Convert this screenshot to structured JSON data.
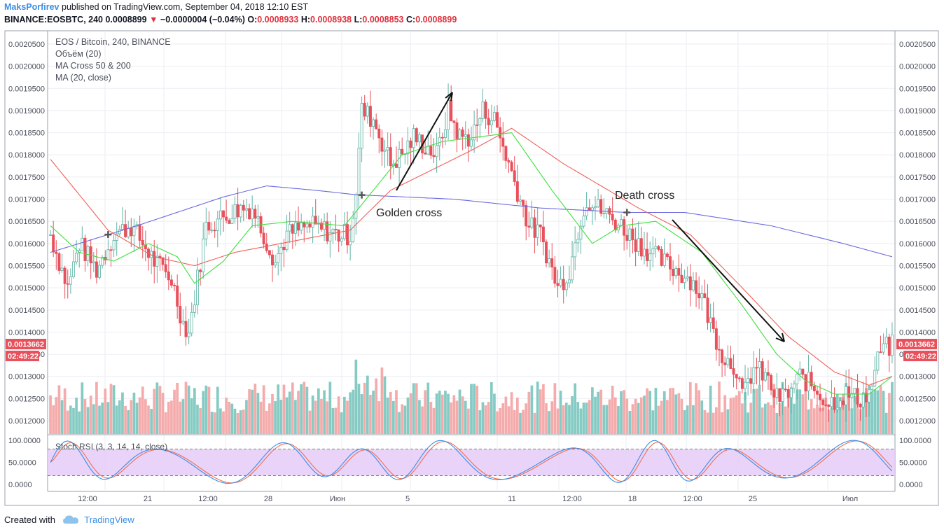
{
  "header": {
    "author": "MaksPorfirev",
    "published_text": "published on TradingView.com, September 04, 2018 12:10 EST",
    "symbol": "BINANCE:EOSBTC, 240",
    "last_price": "0.0008899",
    "change": "−0.0000004 (−0.04%)",
    "open_label": "O:",
    "open": "0.0008933",
    "high_label": "H:",
    "high": "0.0008938",
    "low_label": "L:",
    "low": "0.0008853",
    "close_label": "C:",
    "close": "0.0008899"
  },
  "legend": {
    "title": "EOS / Bitcoin, 240, BINANCE",
    "volume": "Объём (20)",
    "ma_cross": "MA Cross 50 & 200",
    "ma": "MA (20, close)"
  },
  "rsi_label": "Stoch RSI (3, 3, 14, 14, close)",
  "annotations": {
    "golden_cross": "Golden cross",
    "death_cross": "Death cross"
  },
  "price_badge": {
    "price": "0.0013662",
    "countdown": "02:49:22"
  },
  "footer": {
    "created_with": "Created with",
    "brand": "TradingView"
  },
  "colors": {
    "up": "#7ec8c0",
    "down": "#e8505b",
    "up_candle_fill": "#ffffff",
    "ma20": "#3ee03e",
    "ma50": "#f0605a",
    "ma200": "#6a6ae0",
    "rsi_k": "#3b8de8",
    "rsi_d": "#f07050",
    "rsi_band": "#e3c8f8",
    "badge": "#e8505b",
    "brand": "#3a8ee6"
  },
  "chart_data": {
    "type": "candlestick",
    "y_axis_ticks": [
      "0.0020500",
      "0.0020000",
      "0.0019500",
      "0.0019000",
      "0.0018500",
      "0.0018000",
      "0.0017500",
      "0.0017000",
      "0.0016500",
      "0.0016000",
      "0.0015500",
      "0.0015000",
      "0.0014500",
      "0.0014000",
      "0.0013500",
      "0.0013000",
      "0.0012500",
      "0.0012000"
    ],
    "y_range": [
      0.00117,
      0.00208
    ],
    "x_axis_ticks": [
      "12:00",
      "21",
      "12:00",
      "28",
      "Июн",
      "5",
      "11",
      "12:00",
      "18",
      "12:00",
      "25",
      "Июл"
    ],
    "rsi_axis_ticks": [
      "100.0000",
      "50.0000",
      "0.0000"
    ],
    "rsi_range": [
      0,
      100
    ],
    "rsi_bands": [
      20,
      80
    ],
    "price_anchors": [
      [
        0,
        0.00162
      ],
      [
        6,
        0.0015
      ],
      [
        10,
        0.0016
      ],
      [
        16,
        0.00154
      ],
      [
        22,
        0.00162
      ],
      [
        28,
        0.00164
      ],
      [
        36,
        0.00156
      ],
      [
        42,
        0.00152
      ],
      [
        46,
        0.00142
      ],
      [
        48,
        0.0014
      ],
      [
        50,
        0.00148
      ],
      [
        54,
        0.00164
      ],
      [
        60,
        0.00166
      ],
      [
        66,
        0.00168
      ],
      [
        70,
        0.00168
      ],
      [
        74,
        0.00162
      ],
      [
        78,
        0.00156
      ],
      [
        82,
        0.00162
      ],
      [
        90,
        0.00164
      ],
      [
        100,
        0.00162
      ],
      [
        104,
        0.00162
      ],
      [
        106,
        0.00172
      ],
      [
        108,
        0.0019
      ],
      [
        112,
        0.00188
      ],
      [
        118,
        0.00178
      ],
      [
        122,
        0.0018
      ],
      [
        126,
        0.00184
      ],
      [
        130,
        0.00182
      ],
      [
        134,
        0.0018
      ],
      [
        138,
        0.0019
      ],
      [
        142,
        0.00184
      ],
      [
        146,
        0.00184
      ],
      [
        150,
        0.0019
      ],
      [
        154,
        0.00188
      ],
      [
        158,
        0.0018
      ],
      [
        162,
        0.00172
      ],
      [
        166,
        0.00164
      ],
      [
        170,
        0.00162
      ],
      [
        174,
        0.00154
      ],
      [
        176,
        0.0015
      ],
      [
        180,
        0.00154
      ],
      [
        184,
        0.00166
      ],
      [
        186,
        0.0017
      ],
      [
        190,
        0.00168
      ],
      [
        194,
        0.00166
      ],
      [
        198,
        0.00164
      ],
      [
        204,
        0.0016
      ],
      [
        212,
        0.00156
      ],
      [
        222,
        0.00152
      ],
      [
        226,
        0.00148
      ],
      [
        230,
        0.0014
      ],
      [
        234,
        0.00134
      ],
      [
        238,
        0.00132
      ],
      [
        240,
        0.00125
      ],
      [
        244,
        0.00132
      ],
      [
        248,
        0.0013
      ],
      [
        252,
        0.00125
      ],
      [
        256,
        0.00126
      ],
      [
        260,
        0.0013
      ],
      [
        264,
        0.00128
      ],
      [
        270,
        0.00124
      ],
      [
        276,
        0.00126
      ],
      [
        280,
        0.00125
      ],
      [
        284,
        0.00126
      ],
      [
        288,
        0.00136
      ],
      [
        292,
        0.00137
      ]
    ],
    "ma200_anchors": [
      [
        0,
        0.00158
      ],
      [
        30,
        0.00164
      ],
      [
        60,
        0.001705
      ],
      [
        75,
        0.00173
      ],
      [
        92,
        0.00172
      ],
      [
        106,
        0.00171
      ],
      [
        140,
        0.0017
      ],
      [
        170,
        0.00168
      ],
      [
        200,
        0.00167
      ],
      [
        220,
        0.00167
      ],
      [
        250,
        0.00164
      ],
      [
        275,
        0.0016
      ],
      [
        292,
        0.00157
      ]
    ],
    "ma50_anchors": [
      [
        0,
        0.00179
      ],
      [
        20,
        0.00163
      ],
      [
        36,
        0.00157
      ],
      [
        50,
        0.00155
      ],
      [
        64,
        0.00158
      ],
      [
        80,
        0.0016
      ],
      [
        104,
        0.00163
      ],
      [
        118,
        0.00172
      ],
      [
        146,
        0.00181
      ],
      [
        160,
        0.00186
      ],
      [
        178,
        0.00178
      ],
      [
        204,
        0.00168
      ],
      [
        222,
        0.00162
      ],
      [
        240,
        0.0015
      ],
      [
        256,
        0.00139
      ],
      [
        272,
        0.00131
      ],
      [
        284,
        0.00128
      ],
      [
        292,
        0.0013
      ]
    ],
    "ma20_anchors": [
      [
        0,
        0.00164
      ],
      [
        10,
        0.00158
      ],
      [
        22,
        0.00156
      ],
      [
        34,
        0.0016
      ],
      [
        44,
        0.00157
      ],
      [
        50,
        0.00151
      ],
      [
        60,
        0.00156
      ],
      [
        70,
        0.00164
      ],
      [
        84,
        0.00165
      ],
      [
        102,
        0.00164
      ],
      [
        112,
        0.00172
      ],
      [
        122,
        0.0018
      ],
      [
        136,
        0.00183
      ],
      [
        160,
        0.00185
      ],
      [
        174,
        0.00172
      ],
      [
        188,
        0.0016
      ],
      [
        198,
        0.00164
      ],
      [
        210,
        0.00165
      ],
      [
        226,
        0.00158
      ],
      [
        240,
        0.00146
      ],
      [
        252,
        0.00135
      ],
      [
        262,
        0.00129
      ],
      [
        272,
        0.00126
      ],
      [
        284,
        0.00126
      ],
      [
        292,
        0.0013
      ]
    ],
    "volume_range": [
      0,
      3.0
    ],
    "bar_count": 293
  }
}
